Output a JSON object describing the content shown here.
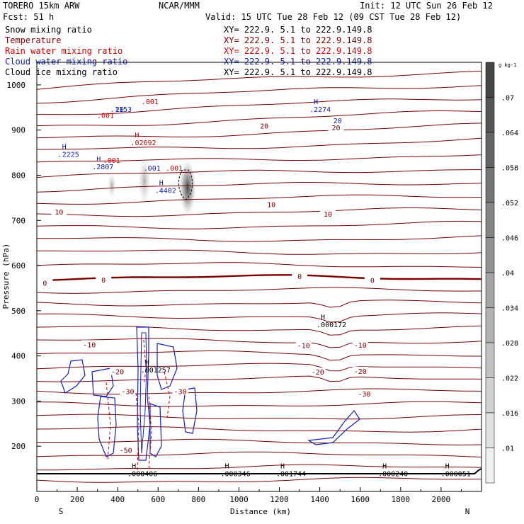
{
  "header": {
    "model": "TORERO  15km ARW",
    "center": "NCAR/MMM",
    "init": "Init: 12 UTC Sun 26 Feb 12",
    "fcst": "Fcst:    51 h",
    "valid": "Valid: 15 UTC Tue 28 Feb 12 (09 CST Tue 28 Feb 12)"
  },
  "fields": [
    {
      "name": "Snow mixing ratio",
      "xy": "XY= 222.9.  5.1 to 222.9.149.8",
      "color": "#000000"
    },
    {
      "name": "Temperature",
      "xy": "XY= 222.9.  5.1 to 222.9.149.8",
      "color": "#7a0000"
    },
    {
      "name": "Rain water mixing ratio",
      "xy": "XY= 222.9.  5.1 to 222.9.149.8",
      "color": "#d40000"
    },
    {
      "name": "Cloud water mixing ratio",
      "xy": "XY= 222.9.  5.1 to 222.9.149.8",
      "color": "#1020c0"
    },
    {
      "name": "Cloud ice mixing ratio",
      "xy": "XY= 222.9.  5.1 to 222.9.149.8",
      "color": "#000000"
    }
  ],
  "colorbar": {
    "unit": "g kg-1",
    "ticks": [
      ".01",
      ".016",
      ".022",
      ".028",
      ".034",
      ".04",
      ".046",
      ".052",
      ".058",
      ".064",
      ".07"
    ]
  },
  "chart_data": {
    "type": "contour",
    "xlabel": "Distance (km)",
    "ylabel": "Pressure (hPa)",
    "xlim": [
      0,
      2200
    ],
    "ylim": [
      1050,
      100
    ],
    "xticks": [
      "0",
      "200",
      "400",
      "600",
      "800",
      "1000",
      "1200",
      "1400",
      "1600",
      "1800",
      "2000"
    ],
    "yticks": [
      "200",
      "300",
      "400",
      "500",
      "600",
      "700",
      "800",
      "900",
      "1000"
    ],
    "end_labels": {
      "left": "S",
      "right": "N"
    },
    "temperature_labels": [
      {
        "text": "-50",
        "x": 440,
        "p": 190
      },
      {
        "text": "-30",
        "x": 450,
        "p": 320
      },
      {
        "text": "-30",
        "x": 710,
        "p": 320
      },
      {
        "text": "-30",
        "x": 1620,
        "p": 315
      },
      {
        "text": "-20",
        "x": 400,
        "p": 364
      },
      {
        "text": "-20",
        "x": 1390,
        "p": 363
      },
      {
        "text": "-20",
        "x": 1600,
        "p": 365
      },
      {
        "text": "-10",
        "x": 260,
        "p": 424
      },
      {
        "text": "-10",
        "x": 1320,
        "p": 422
      },
      {
        "text": "-10",
        "x": 1600,
        "p": 423
      },
      {
        "text": "0",
        "x": 40,
        "p": 560
      },
      {
        "text": "0",
        "x": 330,
        "p": 567
      },
      {
        "text": "0",
        "x": 1300,
        "p": 575
      },
      {
        "text": "0",
        "x": 1660,
        "p": 566
      },
      {
        "text": "10",
        "x": 110,
        "p": 718
      },
      {
        "text": "10",
        "x": 1160,
        "p": 734
      },
      {
        "text": "10",
        "x": 1440,
        "p": 713
      },
      {
        "text": "20",
        "x": 1125,
        "p": 908
      },
      {
        "text": "20",
        "x": 1480,
        "p": 904
      }
    ],
    "maxima": [
      {
        "marker": "H",
        "value": ".000406",
        "x": 505,
        "p": 135,
        "color": "#000000"
      },
      {
        "marker": "H",
        "value": ".000346",
        "x": 965,
        "p": 135,
        "color": "#000000"
      },
      {
        "marker": "H",
        "value": ".001744",
        "x": 1240,
        "p": 135,
        "color": "#000000"
      },
      {
        "marker": "H",
        "value": ".000240",
        "x": 1745,
        "p": 135,
        "color": "#000000"
      },
      {
        "marker": "H",
        "value": ".000051",
        "x": 2055,
        "p": 135,
        "color": "#000000"
      },
      {
        "marker": "H",
        "value": ".001257",
        "x": 570,
        "p": 365,
        "color": "#000000"
      },
      {
        "marker": "H",
        "value": ".000172",
        "x": 1440,
        "p": 465,
        "color": "#000000"
      },
      {
        "marker": "H",
        "value": ".4402",
        "x": 640,
        "p": 762,
        "color": "#1020c0"
      },
      {
        "marker": "H",
        "value": ".2807",
        "x": 330,
        "p": 815,
        "color": "#1020c0"
      },
      {
        "marker": "H",
        "value": ".2225",
        "x": 160,
        "p": 842,
        "color": "#1020c0"
      },
      {
        "marker": "H",
        "value": ".02692",
        "x": 520,
        "p": 868,
        "color": "#d40000"
      },
      {
        "marker": "H",
        "value": ".2274",
        "x": 1405,
        "p": 942,
        "color": "#1020c0"
      },
      {
        "marker": "",
        "value": ".1153",
        "x": 420,
        "p": 942,
        "color": "#1020c0"
      }
    ],
    "contour_level_labels": [
      {
        "text": ".001",
        "x": 570,
        "p": 815,
        "color": "#1020c0"
      },
      {
        "text": ".001",
        "x": 680,
        "p": 815,
        "color": "#d40000"
      },
      {
        "text": ".001",
        "x": 370,
        "p": 832,
        "color": "#d40000"
      },
      {
        "text": ".001",
        "x": 340,
        "p": 932,
        "color": "#d40000"
      },
      {
        "text": ".001",
        "x": 560,
        "p": 962,
        "color": "#d40000"
      },
      {
        "text": "20",
        "x": 1488,
        "p": 920,
        "color": "#1020c0"
      },
      {
        "text": "20",
        "x": 410,
        "p": 945,
        "color": "#1020c0"
      }
    ]
  }
}
